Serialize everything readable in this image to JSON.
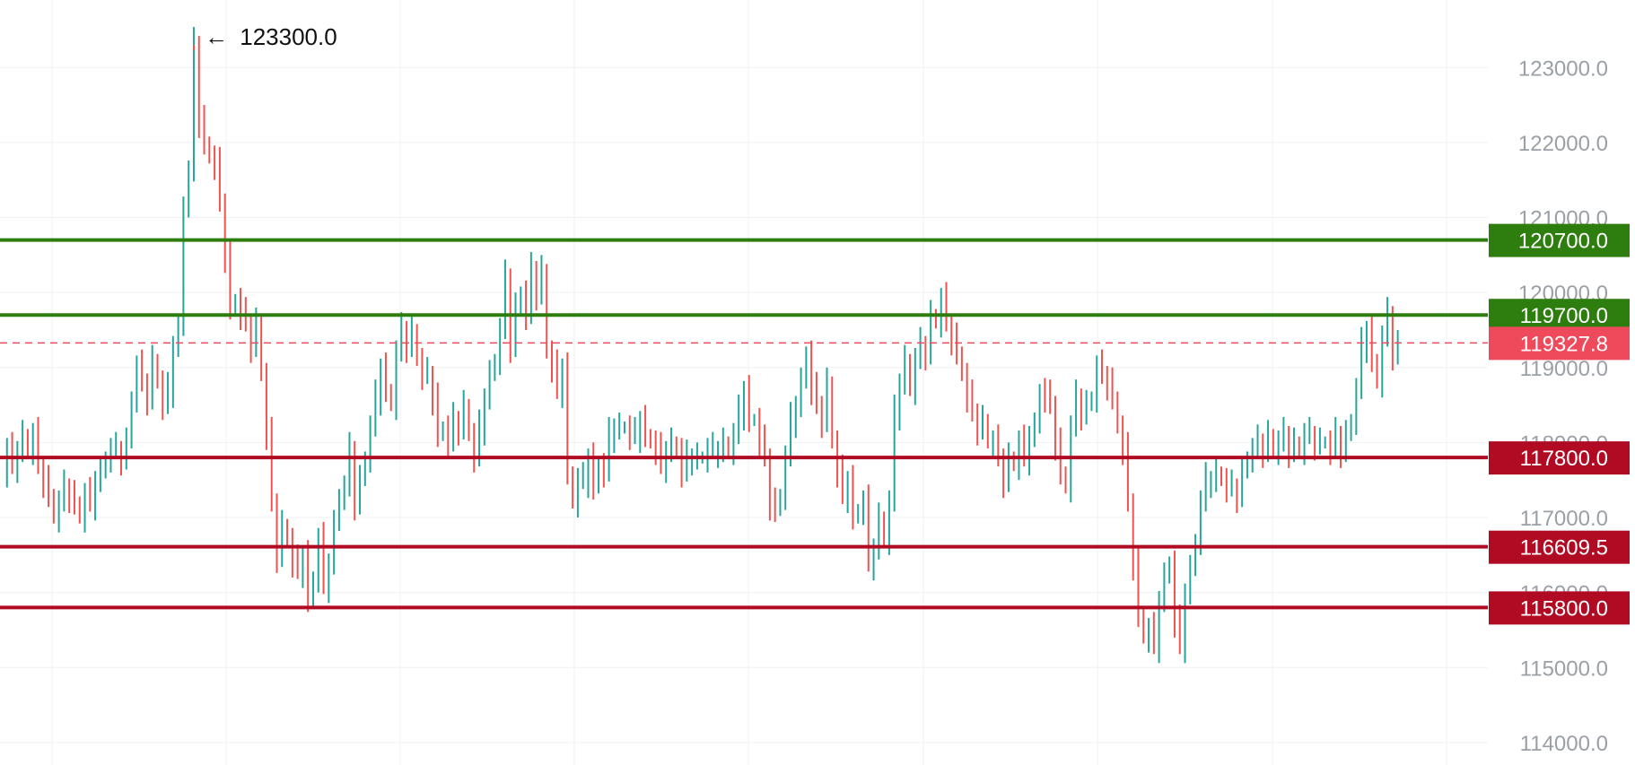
{
  "chart_data": {
    "type": "ohlc",
    "y_axis": {
      "side": "right",
      "range": [
        113700,
        123900
      ],
      "ticks": [
        "114000.0",
        "115000.0",
        "116000.0",
        "117000.0",
        "118000.0",
        "119000.0",
        "120000.0",
        "121000.0",
        "122000.0",
        "123000.0"
      ]
    },
    "grid": true,
    "annotations": [
      {
        "type": "max-marker",
        "value": 123300.0,
        "label": "123300.0",
        "arrow": "←"
      }
    ],
    "levels": [
      {
        "name": "resistance-1",
        "value": 120700.0,
        "label": "120700.0",
        "color": "#2e7d0f",
        "style": "solid"
      },
      {
        "name": "resistance-2",
        "value": 119700.0,
        "label": "119700.0",
        "color": "#2e7d0f",
        "style": "solid"
      },
      {
        "name": "current-price",
        "value": 119327.8,
        "label": "119327.8",
        "color": "#ef4a5b",
        "style": "dashed"
      },
      {
        "name": "support-1",
        "value": 117800.0,
        "label": "117800.0",
        "color": "#b10b23",
        "style": "solid"
      },
      {
        "name": "support-2",
        "value": 116609.5,
        "label": "116609.5",
        "color": "#b10b23",
        "style": "solid"
      },
      {
        "name": "support-3",
        "value": 115800.0,
        "label": "115800.0",
        "color": "#b10b23",
        "style": "solid"
      }
    ],
    "colors": {
      "up": "#26a69a",
      "down": "#ef5350",
      "grid": "#eef1f4",
      "tick_text": "#9aa0a6"
    },
    "series": [
      {
        "path": [
          [
            0,
            117600
          ],
          [
            5,
            117900
          ],
          [
            10,
            117700
          ],
          [
            15,
            117900
          ],
          [
            20,
            118100
          ],
          [
            25,
            117900
          ],
          [
            30,
            118100
          ],
          [
            35,
            117700
          ],
          [
            40,
            117500
          ],
          [
            45,
            117300
          ],
          [
            50,
            117000
          ],
          [
            55,
            117200
          ],
          [
            60,
            117400
          ],
          [
            65,
            117300
          ],
          [
            70,
            117200
          ],
          [
            75,
            117000
          ],
          [
            80,
            117300
          ],
          [
            85,
            117200
          ],
          [
            90,
            117500
          ],
          [
            95,
            117600
          ],
          [
            100,
            117800
          ],
          [
            105,
            117900
          ],
          [
            110,
            117900
          ],
          [
            115,
            117800
          ],
          [
            120,
            118000
          ],
          [
            125,
            118600
          ],
          [
            130,
            119000
          ],
          [
            135,
            118800
          ],
          [
            140,
            118600
          ],
          [
            145,
            119100
          ],
          [
            150,
            118800
          ],
          [
            155,
            118500
          ],
          [
            160,
            118700
          ],
          [
            165,
            119300
          ],
          [
            170,
            119500
          ],
          [
            175,
            121200
          ],
          [
            180,
            121600
          ],
          [
            185,
            123300
          ],
          [
            190,
            122300
          ],
          [
            195,
            122000
          ],
          [
            200,
            121800
          ],
          [
            205,
            121700
          ],
          [
            210,
            121200
          ],
          [
            215,
            120500
          ],
          [
            220,
            119800
          ],
          [
            225,
            119900
          ],
          [
            230,
            119700
          ],
          [
            235,
            119600
          ],
          [
            240,
            119300
          ],
          [
            245,
            119600
          ],
          [
            250,
            118900
          ],
          [
            255,
            118100
          ],
          [
            260,
            117200
          ],
          [
            265,
            116500
          ],
          [
            270,
            116900
          ],
          [
            275,
            116700
          ],
          [
            280,
            116400
          ],
          [
            285,
            116300
          ],
          [
            290,
            116500
          ],
          [
            295,
            115900
          ],
          [
            300,
            116200
          ],
          [
            305,
            116700
          ],
          [
            310,
            116100
          ],
          [
            315,
            116400
          ],
          [
            320,
            116900
          ],
          [
            325,
            117300
          ],
          [
            330,
            117400
          ],
          [
            335,
            117900
          ],
          [
            340,
            117200
          ],
          [
            345,
            117500
          ],
          [
            350,
            117800
          ],
          [
            355,
            118200
          ],
          [
            360,
            118600
          ],
          [
            365,
            119000
          ],
          [
            370,
            118700
          ],
          [
            375,
            118500
          ],
          [
            380,
            119200
          ],
          [
            385,
            119500
          ],
          [
            390,
            119300
          ],
          [
            395,
            119500
          ],
          [
            400,
            119100
          ],
          [
            405,
            118900
          ],
          [
            410,
            118900
          ],
          [
            415,
            118600
          ],
          [
            420,
            118100
          ],
          [
            425,
            118200
          ],
          [
            430,
            118000
          ],
          [
            435,
            118300
          ],
          [
            440,
            118200
          ],
          [
            445,
            118500
          ],
          [
            450,
            118100
          ],
          [
            455,
            117800
          ],
          [
            460,
            118200
          ],
          [
            465,
            118600
          ],
          [
            470,
            118900
          ],
          [
            475,
            119100
          ],
          [
            480,
            119500
          ],
          [
            485,
            120200
          ],
          [
            490,
            119300
          ],
          [
            495,
            119800
          ],
          [
            500,
            120000
          ],
          [
            505,
            119700
          ],
          [
            510,
            120300
          ],
          [
            515,
            120000
          ],
          [
            520,
            120300
          ],
          [
            525,
            119200
          ],
          [
            530,
            119000
          ],
          [
            535,
            118700
          ],
          [
            540,
            119000
          ],
          [
            545,
            117600
          ],
          [
            550,
            117200
          ],
          [
            555,
            117500
          ],
          [
            560,
            117500
          ],
          [
            565,
            117800
          ],
          [
            570,
            117400
          ],
          [
            575,
            117700
          ],
          [
            580,
            117600
          ],
          [
            585,
            118100
          ],
          [
            590,
            118200
          ],
          [
            595,
            118200
          ],
          [
            600,
            118200
          ],
          [
            605,
            118100
          ],
          [
            610,
            118100
          ],
          [
            615,
            118300
          ],
          [
            620,
            118100
          ],
          [
            625,
            118000
          ],
          [
            630,
            117900
          ],
          [
            635,
            117700
          ],
          [
            640,
            117900
          ],
          [
            645,
            118000
          ],
          [
            650,
            117900
          ],
          [
            655,
            117600
          ],
          [
            660,
            117800
          ],
          [
            665,
            117800
          ],
          [
            670,
            117800
          ],
          [
            675,
            117800
          ],
          [
            680,
            117900
          ],
          [
            685,
            117900
          ],
          [
            690,
            117900
          ],
          [
            695,
            118000
          ],
          [
            700,
            117900
          ],
          [
            705,
            118100
          ],
          [
            710,
            118400
          ],
          [
            715,
            118700
          ],
          [
            720,
            118300
          ],
          [
            725,
            118300
          ],
          [
            730,
            118000
          ],
          [
            735,
            117800
          ],
          [
            740,
            117200
          ],
          [
            745,
            117100
          ],
          [
            750,
            117300
          ],
          [
            755,
            117800
          ],
          [
            760,
            118300
          ],
          [
            765,
            118500
          ],
          [
            770,
            118800
          ],
          [
            775,
            119200
          ],
          [
            780,
            118700
          ],
          [
            785,
            118500
          ],
          [
            790,
            118300
          ],
          [
            795,
            118800
          ],
          [
            800,
            118000
          ],
          [
            805,
            117600
          ],
          [
            810,
            117300
          ],
          [
            815,
            117500
          ],
          [
            820,
            117000
          ],
          [
            825,
            117100
          ],
          [
            830,
            117200
          ],
          [
            835,
            116400
          ],
          [
            840,
            116600
          ],
          [
            845,
            117000
          ],
          [
            850,
            116700
          ],
          [
            855,
            117200
          ],
          [
            860,
            118400
          ],
          [
            865,
            118800
          ],
          [
            870,
            119100
          ],
          [
            875,
            118700
          ],
          [
            880,
            119100
          ],
          [
            885,
            119300
          ],
          [
            890,
            119200
          ],
          [
            895,
            119700
          ],
          [
            900,
            119600
          ],
          [
            905,
            119900
          ],
          [
            910,
            119600
          ],
          [
            915,
            119400
          ],
          [
            920,
            119200
          ],
          [
            925,
            118900
          ],
          [
            930,
            118600
          ],
          [
            935,
            118400
          ],
          [
            940,
            118200
          ],
          [
            945,
            118300
          ],
          [
            950,
            118000
          ],
          [
            955,
            118000
          ],
          [
            960,
            117800
          ],
          [
            965,
            117500
          ],
          [
            970,
            117800
          ],
          [
            975,
            117700
          ],
          [
            980,
            118000
          ],
          [
            985,
            117800
          ],
          [
            990,
            118100
          ],
          [
            995,
            118200
          ],
          [
            1000,
            118700
          ],
          [
            1005,
            118600
          ],
          [
            1010,
            118500
          ],
          [
            1015,
            118000
          ],
          [
            1020,
            117600
          ],
          [
            1025,
            117400
          ],
          [
            1030,
            118200
          ],
          [
            1035,
            118600
          ],
          [
            1040,
            118400
          ],
          [
            1045,
            118500
          ],
          [
            1050,
            118600
          ],
          [
            1055,
            119000
          ],
          [
            1060,
            118900
          ],
          [
            1065,
            118800
          ],
          [
            1070,
            118600
          ],
          [
            1075,
            118200
          ],
          [
            1080,
            117900
          ],
          [
            1085,
            117200
          ],
          [
            1090,
            116400
          ],
          [
            1095,
            115700
          ],
          [
            1100,
            115400
          ],
          [
            1105,
            115500
          ],
          [
            1110,
            115300
          ],
          [
            1115,
            115900
          ],
          [
            1120,
            116200
          ],
          [
            1125,
            116400
          ],
          [
            1130,
            115600
          ],
          [
            1135,
            115300
          ],
          [
            1140,
            116000
          ],
          [
            1145,
            116300
          ],
          [
            1150,
            116700
          ],
          [
            1155,
            117200
          ],
          [
            1160,
            117500
          ],
          [
            1165,
            117500
          ],
          [
            1170,
            117600
          ],
          [
            1175,
            117500
          ],
          [
            1180,
            117400
          ],
          [
            1185,
            117400
          ],
          [
            1190,
            117300
          ],
          [
            1195,
            117600
          ],
          [
            1200,
            117800
          ],
          [
            1205,
            117900
          ],
          [
            1210,
            118000
          ],
          [
            1215,
            117900
          ],
          [
            1220,
            118100
          ],
          [
            1225,
            117900
          ],
          [
            1230,
            118000
          ],
          [
            1235,
            118100
          ],
          [
            1240,
            117900
          ],
          [
            1245,
            118000
          ],
          [
            1250,
            117900
          ],
          [
            1255,
            118100
          ],
          [
            1260,
            118100
          ],
          [
            1265,
            118000
          ],
          [
            1270,
            118000
          ],
          [
            1275,
            118000
          ],
          [
            1280,
            117900
          ],
          [
            1285,
            118100
          ],
          [
            1290,
            117900
          ],
          [
            1295,
            118100
          ],
          [
            1300,
            118300
          ],
          [
            1305,
            118700
          ],
          [
            1310,
            119300
          ],
          [
            1315,
            119500
          ],
          [
            1320,
            119100
          ],
          [
            1325,
            118800
          ],
          [
            1330,
            119400
          ],
          [
            1335,
            119700
          ],
          [
            1340,
            119200
          ],
          [
            1345,
            119300
          ]
        ]
      }
    ]
  }
}
